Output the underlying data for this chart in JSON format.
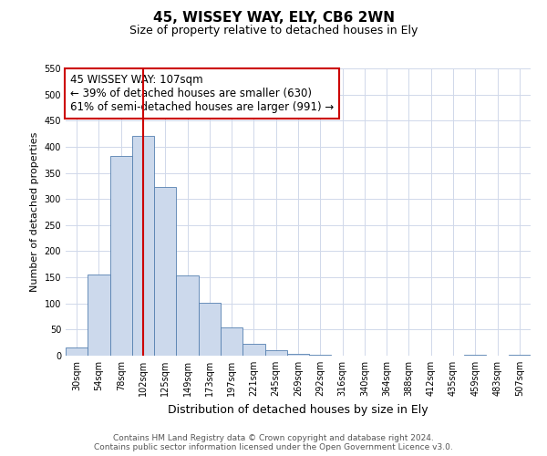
{
  "title": "45, WISSEY WAY, ELY, CB6 2WN",
  "subtitle": "Size of property relative to detached houses in Ely",
  "xlabel": "Distribution of detached houses by size in Ely",
  "ylabel": "Number of detached properties",
  "categories": [
    "30sqm",
    "54sqm",
    "78sqm",
    "102sqm",
    "125sqm",
    "149sqm",
    "173sqm",
    "197sqm",
    "221sqm",
    "245sqm",
    "269sqm",
    "292sqm",
    "316sqm",
    "340sqm",
    "364sqm",
    "388sqm",
    "412sqm",
    "435sqm",
    "459sqm",
    "483sqm",
    "507sqm"
  ],
  "values": [
    15,
    155,
    383,
    420,
    323,
    153,
    101,
    54,
    22,
    10,
    3,
    1,
    0,
    0,
    0,
    0,
    0,
    0,
    1,
    0,
    2
  ],
  "bar_color": "#ccd9ec",
  "bar_edge_color": "#5580b0",
  "vline_x": 3,
  "vline_color": "#cc0000",
  "annotation_text": "45 WISSEY WAY: 107sqm\n← 39% of detached houses are smaller (630)\n61% of semi-detached houses are larger (991) →",
  "annotation_box_color": "#ffffff",
  "annotation_box_edge": "#cc0000",
  "ylim": [
    0,
    550
  ],
  "yticks": [
    0,
    50,
    100,
    150,
    200,
    250,
    300,
    350,
    400,
    450,
    500,
    550
  ],
  "footer_line1": "Contains HM Land Registry data © Crown copyright and database right 2024.",
  "footer_line2": "Contains public sector information licensed under the Open Government Licence v3.0.",
  "title_fontsize": 11,
  "subtitle_fontsize": 9,
  "xlabel_fontsize": 9,
  "ylabel_fontsize": 8,
  "tick_fontsize": 7,
  "footer_fontsize": 6.5,
  "annotation_fontsize": 8.5,
  "bg_color": "#ffffff",
  "grid_color": "#d0d8ea"
}
